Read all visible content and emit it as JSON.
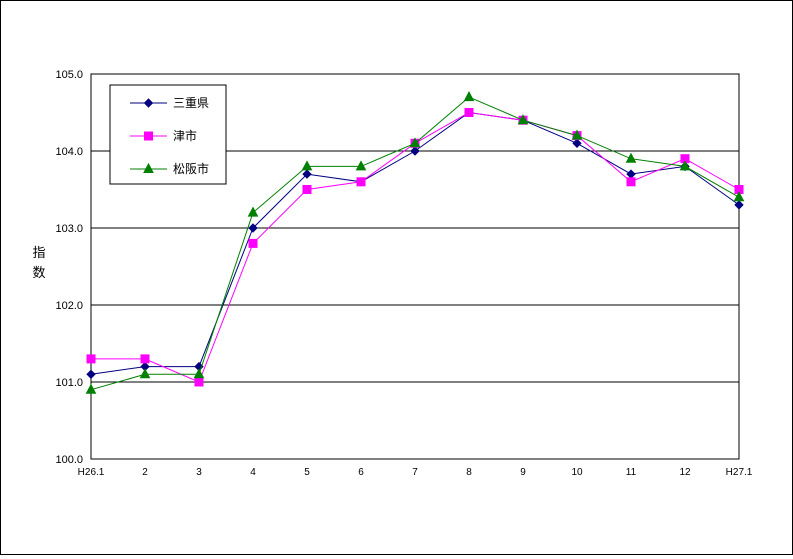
{
  "chart_data": {
    "type": "line",
    "title": "",
    "xlabel": "",
    "ylabel": "指数",
    "categories": [
      "H26.1",
      "2",
      "3",
      "4",
      "5",
      "6",
      "7",
      "8",
      "9",
      "10",
      "11",
      "12",
      "H27.1"
    ],
    "ylim": [
      100.0,
      105.0
    ],
    "yticks": [
      "100.0",
      "101.0",
      "102.0",
      "103.0",
      "104.0",
      "105.0"
    ],
    "grid": true,
    "legend_position": "top-left",
    "series": [
      {
        "name": "三重県",
        "color": "#000080",
        "marker": "diamond",
        "values": [
          101.1,
          101.2,
          101.2,
          103.0,
          103.7,
          103.6,
          104.0,
          104.5,
          104.4,
          104.1,
          103.7,
          103.8,
          103.3
        ]
      },
      {
        "name": "津市",
        "color": "#ff00ff",
        "marker": "square",
        "values": [
          101.3,
          101.3,
          101.0,
          102.8,
          103.5,
          103.6,
          104.1,
          104.5,
          104.4,
          104.2,
          103.6,
          103.9,
          103.5
        ]
      },
      {
        "name": "松阪市",
        "color": "#008000",
        "marker": "triangle",
        "values": [
          100.9,
          101.1,
          101.1,
          103.2,
          103.8,
          103.8,
          104.1,
          104.7,
          104.4,
          104.2,
          103.9,
          103.8,
          103.4
        ]
      }
    ]
  }
}
